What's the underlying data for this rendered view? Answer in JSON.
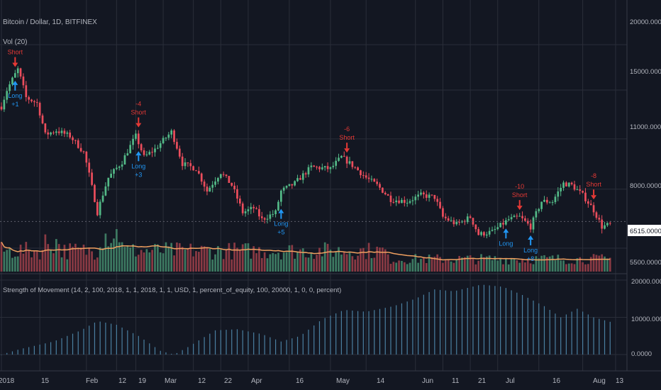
{
  "colors": {
    "background": "#131722",
    "grid": "#2a2e39",
    "up": "#53b987",
    "down": "#eb4d5c",
    "volume_up": "#3d7a62",
    "volume_down": "#8a3a44",
    "volume_ma": "#f0a060",
    "long_signal": "#2196f3",
    "short_signal": "#e53935",
    "indicator": "#4a7fa0",
    "text": "#b2b5be",
    "price_tag_bg": "#ffffff",
    "price_tag_text": "#131722"
  },
  "main_pane": {
    "legend_title": "Bitcoin / Dollar, 1D, BITFINEX",
    "legend_volume": "Vol (20)",
    "price_axis": [
      "20000.0000000",
      "15000.0000000",
      "11000.0000000",
      "8000.0000000",
      "5500.0000000"
    ],
    "last_price": "6515.0000000"
  },
  "lower_pane": {
    "legend": "Strength of Movement (14, 2, 100, 2018, 1, 1, 2018, 1, 1, USD, 1, percent_of_equity, 100, 20000, 1, 0, 0, percent)",
    "axis": [
      "20000.0000",
      "10000.0000",
      "0.0000"
    ]
  },
  "time_axis": [
    "2018",
    "15",
    "Feb",
    "12",
    "19",
    "Mar",
    "12",
    "22",
    "Apr",
    "16",
    "May",
    "14",
    "Jun",
    "11",
    "21",
    "Jul",
    "16",
    "Aug",
    "13"
  ],
  "chart_data": [
    {
      "type": "candlestick",
      "title": "Bitcoin / Dollar, 1D, BITFINEX",
      "y_scale": "log",
      "ylim": [
        5200,
        20500
      ],
      "price_ticks": [
        20000,
        15000,
        11000,
        8000,
        5500
      ],
      "x_range": [
        "2018-01-01",
        "2018-08-13"
      ],
      "close_anchors": [
        [
          "2018-01-01",
          13500
        ],
        [
          "2018-01-03",
          15000
        ],
        [
          "2018-01-07",
          17100
        ],
        [
          "2018-01-10",
          14300
        ],
        [
          "2018-01-14",
          13800
        ],
        [
          "2018-01-17",
          11300
        ],
        [
          "2018-01-21",
          11600
        ],
        [
          "2018-01-26",
          11200
        ],
        [
          "2018-01-31",
          10100
        ],
        [
          "2018-02-03",
          8100
        ],
        [
          "2018-02-05",
          6900
        ],
        [
          "2018-02-09",
          8600
        ],
        [
          "2018-02-14",
          9500
        ],
        [
          "2018-02-19",
          11200
        ],
        [
          "2018-02-22",
          9800
        ],
        [
          "2018-02-26",
          10300
        ],
        [
          "2018-03-04",
          11500
        ],
        [
          "2018-03-08",
          9400
        ],
        [
          "2018-03-13",
          9100
        ],
        [
          "2018-03-17",
          7900
        ],
        [
          "2018-03-22",
          8900
        ],
        [
          "2018-03-26",
          8200
        ],
        [
          "2018-03-30",
          6900
        ],
        [
          "2018-04-03",
          7100
        ],
        [
          "2018-04-06",
          6600
        ],
        [
          "2018-04-11",
          6900
        ],
        [
          "2018-04-13",
          7900
        ],
        [
          "2018-04-18",
          8300
        ],
        [
          "2018-04-24",
          9200
        ],
        [
          "2018-05-01",
          9100
        ],
        [
          "2018-05-05",
          9800
        ],
        [
          "2018-05-09",
          9300
        ],
        [
          "2018-05-14",
          8600
        ],
        [
          "2018-05-18",
          8200
        ],
        [
          "2018-05-23",
          7500
        ],
        [
          "2018-05-29",
          7400
        ],
        [
          "2018-06-03",
          7700
        ],
        [
          "2018-06-08",
          7600
        ],
        [
          "2018-06-11",
          6700
        ],
        [
          "2018-06-16",
          6400
        ],
        [
          "2018-06-21",
          6700
        ],
        [
          "2018-06-24",
          6000
        ],
        [
          "2018-06-29",
          6100
        ],
        [
          "2018-07-05",
          6600
        ],
        [
          "2018-07-09",
          6700
        ],
        [
          "2018-07-13",
          6300
        ],
        [
          "2018-07-17",
          7400
        ],
        [
          "2018-07-21",
          7400
        ],
        [
          "2018-07-25",
          8300
        ],
        [
          "2018-07-28",
          8200
        ],
        [
          "2018-08-01",
          7700
        ],
        [
          "2018-08-05",
          7000
        ],
        [
          "2018-08-08",
          6300
        ],
        [
          "2018-08-11",
          6400
        ]
      ],
      "signals": [
        {
          "type": "short",
          "date": "2018-01-06",
          "label": "Short",
          "amount": ""
        },
        {
          "type": "long",
          "date": "2018-01-06",
          "label": "Long",
          "amount": "+1"
        },
        {
          "type": "short",
          "date": "2018-02-20",
          "label": "Short",
          "amount": "-4"
        },
        {
          "type": "long",
          "date": "2018-02-20",
          "label": "Long",
          "amount": "+3"
        },
        {
          "type": "long",
          "date": "2018-04-13",
          "label": "Long",
          "amount": "+5"
        },
        {
          "type": "short",
          "date": "2018-05-07",
          "label": "Short",
          "amount": "-6"
        },
        {
          "type": "long",
          "date": "2018-07-04",
          "label": "Long",
          "amount": ""
        },
        {
          "type": "short",
          "date": "2018-07-09",
          "label": "Short",
          "amount": "-10"
        },
        {
          "type": "long",
          "date": "2018-07-13",
          "label": "Long",
          "amount": "+8"
        },
        {
          "type": "short",
          "date": "2018-08-05",
          "label": "Short",
          "amount": "-8"
        }
      ]
    },
    {
      "type": "bar",
      "title": "Vol (20)",
      "series": [
        {
          "name": "Vol (20)"
        }
      ]
    },
    {
      "type": "bar",
      "title": "Strength of Movement (14, 2, 100, 2018, 1, 1, 2018, 1, 1, USD, 1, percent_of_equity, 100, 20000, 1, 0, 0, percent)",
      "ylim": [
        0,
        20000
      ],
      "y_ticks": [
        20000,
        10000,
        0
      ],
      "anchors": [
        [
          "2018-01-01",
          0
        ],
        [
          "2018-01-08",
          1500
        ],
        [
          "2018-01-20",
          3500
        ],
        [
          "2018-01-30",
          6500
        ],
        [
          "2018-02-05",
          9000
        ],
        [
          "2018-02-12",
          8000
        ],
        [
          "2018-02-20",
          5000
        ],
        [
          "2018-02-28",
          1000
        ],
        [
          "2018-03-05",
          0
        ],
        [
          "2018-03-10",
          2000
        ],
        [
          "2018-03-20",
          6500
        ],
        [
          "2018-03-28",
          6800
        ],
        [
          "2018-04-06",
          5500
        ],
        [
          "2018-04-13",
          3500
        ],
        [
          "2018-04-20",
          5000
        ],
        [
          "2018-04-28",
          9500
        ],
        [
          "2018-05-06",
          12000
        ],
        [
          "2018-05-14",
          11500
        ],
        [
          "2018-05-24",
          13000
        ],
        [
          "2018-06-01",
          15000
        ],
        [
          "2018-06-08",
          17500
        ],
        [
          "2018-06-15",
          17000
        ],
        [
          "2018-06-25",
          18800
        ],
        [
          "2018-07-03",
          18200
        ],
        [
          "2018-07-10",
          16000
        ],
        [
          "2018-07-18",
          13000
        ],
        [
          "2018-07-24",
          10000
        ],
        [
          "2018-07-30",
          12300
        ],
        [
          "2018-08-05",
          10000
        ],
        [
          "2018-08-11",
          8800
        ]
      ]
    }
  ]
}
